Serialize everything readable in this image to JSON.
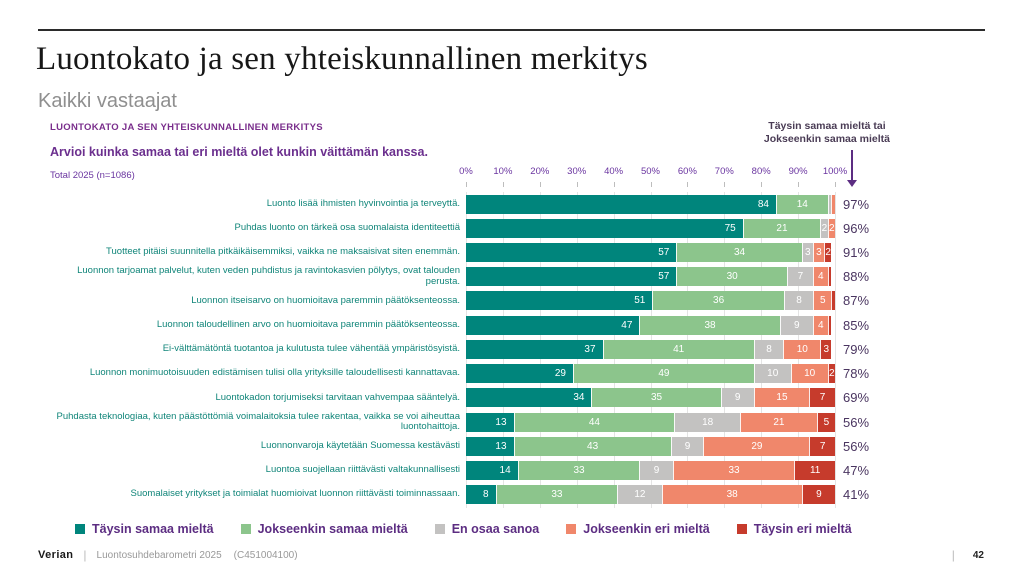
{
  "page": {
    "title": "Luontokato ja sen yhteiskunnallinen merkitys",
    "subtitle": "Kaikki vastaajat",
    "footer": {
      "brand": "Verian",
      "divider": "|",
      "source": "Luontosuhdebarometri 2025",
      "code": "(C451004100)",
      "page_number": "42"
    }
  },
  "chart": {
    "heading": "LUONTOKATO JA SEN YHTEISKUNNALLINEN MERKITYS",
    "question": "Arvioi kuinka samaa tai eri mieltä olet kunkin väittämän kanssa.",
    "base_label": "Total 2025 (n=1086)",
    "annotation": {
      "line1": "Täysin samaa mieltä tai",
      "line2": "Jokseenkin samaa mieltä"
    },
    "accent_colors": {
      "header_purple": "#7a2e8c",
      "text_purple": "#5c2d82",
      "row_label_teal": "#108579",
      "total_color": "#4a3560"
    }
  },
  "chart_data": {
    "type": "bar",
    "orientation": "horizontal-stacked",
    "title": "Luontokato ja sen yhteiskunnallinen merkitys",
    "xlabel": "",
    "ylabel": "",
    "xlim": [
      0,
      100
    ],
    "grid": true,
    "legend_position": "bottom",
    "x_axis_ticks": [
      "0%",
      "10%",
      "20%",
      "30%",
      "40%",
      "50%",
      "60%",
      "70%",
      "80%",
      "90%",
      "100%"
    ],
    "categories": [
      "Luonto lisää ihmisten hyvinvointia ja terveyttä.",
      "Puhdas luonto on tärkeä osa suomalaista identiteettiä",
      "Tuotteet pitäisi suunnitella pitkäikäisemmiksi, vaikka ne maksaisivat siten enemmän.",
      "Luonnon tarjoamat palvelut, kuten veden puhdistus ja ravintokasvien pölytys, ovat talouden perusta.",
      "Luonnon itseisarvo on huomioitava paremmin päätöksenteossa.",
      "Luonnon taloudellinen arvo on huomioitava paremmin päätöksenteossa.",
      "Ei-välttämätöntä tuotantoa ja kulutusta tulee vähentää ympäristösyistä.",
      "Luonnon monimuotoisuuden edistämisen tulisi olla yrityksille taloudellisesti kannattavaa.",
      "Luontokadon torjumiseksi tarvitaan vahvempaa sääntelyä.",
      "Puhdasta teknologiaa, kuten päästöttömiä voimalaitoksia tulee rakentaa, vaikka se voi aiheuttaa luontohaittoja.",
      "Luonnonvaroja käytetään Suomessa kestävästi",
      "Luontoa suojellaan riittävästi valtakunnallisesti",
      "Suomalaiset yritykset ja toimialat huomioivat luonnon riittävästi toiminnassaan."
    ],
    "series": [
      {
        "name": "Täysin samaa mieltä",
        "color": "#00857c",
        "values": [
          84,
          75,
          57,
          57,
          51,
          47,
          37,
          29,
          34,
          13,
          13,
          14,
          8
        ]
      },
      {
        "name": "Jokseenkin samaa mieltä",
        "color": "#8cc58c",
        "values": [
          14,
          21,
          34,
          30,
          36,
          38,
          41,
          49,
          35,
          44,
          43,
          33,
          33
        ]
      },
      {
        "name": "En osaa sanoa",
        "color": "#c3c2c1",
        "values": [
          1,
          2,
          3,
          7,
          8,
          9,
          8,
          10,
          9,
          18,
          9,
          9,
          12
        ]
      },
      {
        "name": "Jokseenkin eri mieltä",
        "color": "#f0876b",
        "values": [
          1,
          2,
          3,
          4,
          5,
          4,
          10,
          10,
          15,
          21,
          29,
          33,
          38
        ]
      },
      {
        "name": "Täysin eri mieltä",
        "color": "#c63b2c",
        "values": [
          0,
          0,
          2,
          1,
          1,
          1,
          3,
          2,
          7,
          5,
          7,
          11,
          9
        ]
      }
    ],
    "totals": [
      "97%",
      "96%",
      "91%",
      "88%",
      "87%",
      "85%",
      "79%",
      "78%",
      "69%",
      "56%",
      "56%",
      "47%",
      "41%"
    ]
  }
}
